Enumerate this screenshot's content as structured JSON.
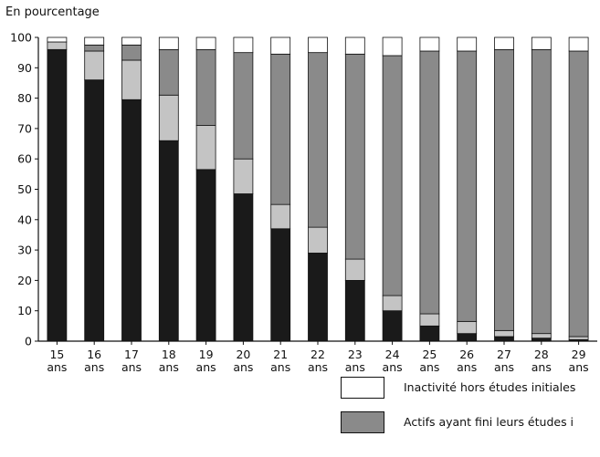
{
  "chart_data": {
    "type": "bar",
    "stacked": true,
    "ylabel": "En pourcentage",
    "ylim": [
      0,
      100
    ],
    "yticks": [
      0,
      10,
      20,
      30,
      40,
      50,
      60,
      70,
      80,
      90,
      100
    ],
    "categories": [
      "15",
      "16",
      "17",
      "18",
      "19",
      "20",
      "21",
      "22",
      "23",
      "24",
      "25",
      "26",
      "27",
      "28",
      "29"
    ],
    "category_suffix": "ans",
    "series": [
      {
        "key": "s1",
        "color": "#1a1a1a",
        "values": [
          96,
          86,
          79.5,
          66,
          56.5,
          48.5,
          37,
          29,
          20,
          10,
          5,
          2.5,
          1.5,
          1,
          0.5
        ]
      },
      {
        "key": "s2",
        "color": "#c4c4c4",
        "values": [
          2.5,
          9.5,
          13,
          15,
          14.5,
          11.5,
          8,
          8.5,
          7,
          5,
          4,
          4,
          2,
          1.5,
          1
        ]
      },
      {
        "key": "s3",
        "color": "#8a8a8a",
        "values": [
          0,
          2,
          5,
          15,
          25,
          35,
          49.5,
          57.5,
          67.5,
          79,
          86.5,
          89,
          92.5,
          93.5,
          94
        ]
      },
      {
        "name": "Inactivité hors études initiales",
        "key": "s4",
        "color": "#ffffff",
        "values": [
          1.5,
          2.5,
          2.5,
          4,
          4,
          5,
          5.5,
          5,
          5.5,
          6,
          4.5,
          4.5,
          4,
          4,
          4.5
        ]
      }
    ],
    "legend": [
      {
        "label": "Inactivité hors études initiales",
        "color": "#ffffff"
      },
      {
        "label": "Actifs ayant fini leurs études i",
        "color": "#8a8a8a"
      }
    ]
  }
}
